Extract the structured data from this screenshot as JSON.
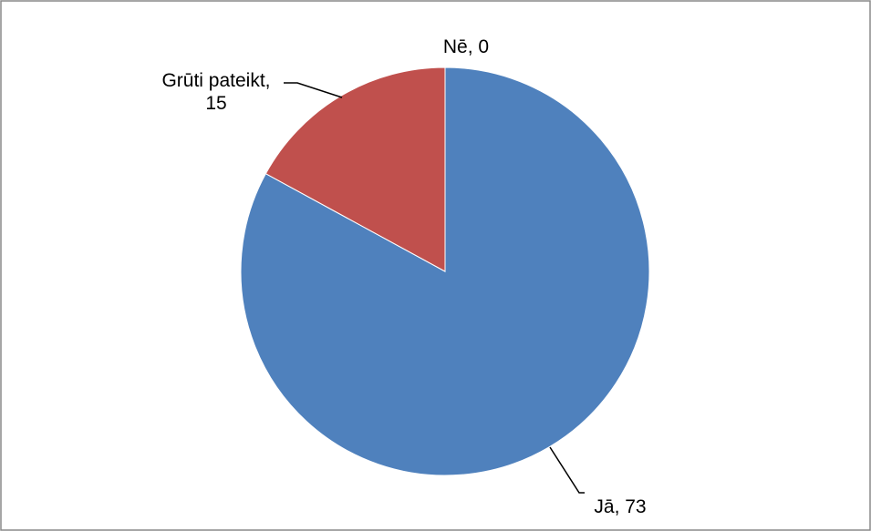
{
  "chart_data": {
    "type": "pie",
    "categories": [
      "Jā",
      "Nē",
      "Grūti pateikt"
    ],
    "values": [
      73,
      0,
      15
    ],
    "colors": [
      "#4F81BD",
      "#4F81BD",
      "#C0504D"
    ],
    "data_labels": [
      {
        "lines": [
          "Jā, 73"
        ]
      },
      {
        "lines": [
          "Nē, 0"
        ]
      },
      {
        "lines": [
          "Grūti pateikt,",
          "15"
        ]
      }
    ],
    "start_angle": "12 o'clock",
    "direction": "clockwise",
    "legend": "none"
  }
}
